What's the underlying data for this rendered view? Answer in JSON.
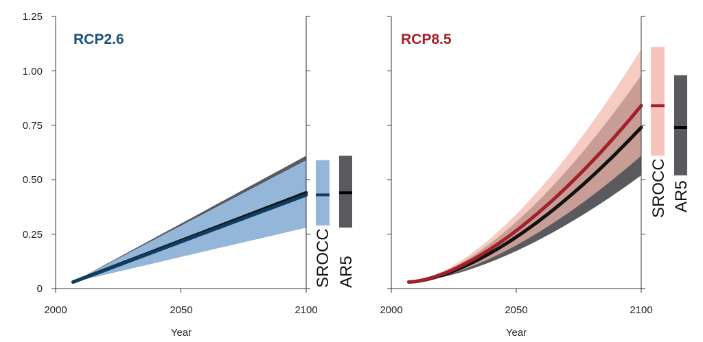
{
  "chart_data": [
    {
      "type": "line",
      "panel": "left",
      "title": "RCP2.6",
      "title_color": "#1b4f7a",
      "xlabel": "Year",
      "ylabel": "",
      "xlim": [
        2000,
        2100
      ],
      "ylim": [
        0,
        1.25
      ],
      "xticks": [
        "2000",
        "2050",
        "2100"
      ],
      "yticks": [
        "0",
        "0.25",
        "0.50",
        "0.75",
        "1.00",
        "1.25"
      ],
      "ar5_band": {
        "x": [
          2007,
          2100
        ],
        "lower": [
          0.03,
          0.28
        ],
        "upper": [
          0.03,
          0.61
        ],
        "color": "#5a5a5e"
      },
      "srocc_band": {
        "x": [
          2007,
          2100
        ],
        "lower": [
          0.03,
          0.28
        ],
        "upper": [
          0.03,
          0.59
        ],
        "color": "#94b6d8"
      },
      "series": [
        {
          "name": "AR5 median",
          "color": "#111111",
          "x": [
            2007,
            2100
          ],
          "values": [
            0.03,
            0.44
          ]
        },
        {
          "name": "SROCC median",
          "color": "#0f3d61",
          "x": [
            2007,
            2100
          ],
          "values": [
            0.03,
            0.43
          ]
        }
      ],
      "side_bars": [
        {
          "label": "SROCC",
          "low": 0.29,
          "high": 0.59,
          "median": 0.43,
          "color": "#94b6d8",
          "median_color": "#0f3d61"
        },
        {
          "label": "AR5",
          "low": 0.28,
          "high": 0.61,
          "median": 0.44,
          "color": "#5a5a5e",
          "median_color": "#000000"
        }
      ]
    },
    {
      "type": "line",
      "panel": "right",
      "title": "RCP8.5",
      "title_color": "#a3202a",
      "xlabel": "Year",
      "ylabel": "",
      "xlim": [
        2000,
        2100
      ],
      "ylim": [
        0,
        1.25
      ],
      "xticks": [
        "2000",
        "2050",
        "2100"
      ],
      "yticks": [
        "0",
        "0.25",
        "0.50",
        "0.75",
        "1.00",
        "1.25"
      ],
      "curve_power": 1.6,
      "ar5_band": {
        "x": [
          2007,
          2100
        ],
        "lower": [
          0.03,
          0.52
        ],
        "upper": [
          0.03,
          0.98
        ],
        "color": "#5a5a5e"
      },
      "srocc_band": {
        "x": [
          2007,
          2100
        ],
        "lower": [
          0.03,
          0.61
        ],
        "upper": [
          0.03,
          1.1
        ],
        "color": "#f1b7ab"
      },
      "series": [
        {
          "name": "AR5 median",
          "color": "#111111",
          "x": [
            2007,
            2100
          ],
          "values": [
            0.03,
            0.74
          ]
        },
        {
          "name": "SROCC median",
          "color": "#a3202a",
          "x": [
            2007,
            2100
          ],
          "values": [
            0.03,
            0.84
          ]
        }
      ],
      "side_bars": [
        {
          "label": "SROCC",
          "low": 0.61,
          "high": 1.11,
          "median": 0.84,
          "color": "#f6c4ba",
          "median_color": "#a3202a"
        },
        {
          "label": "AR5",
          "low": 0.52,
          "high": 0.98,
          "median": 0.74,
          "color": "#5a5a5e",
          "median_color": "#000000"
        }
      ]
    }
  ]
}
